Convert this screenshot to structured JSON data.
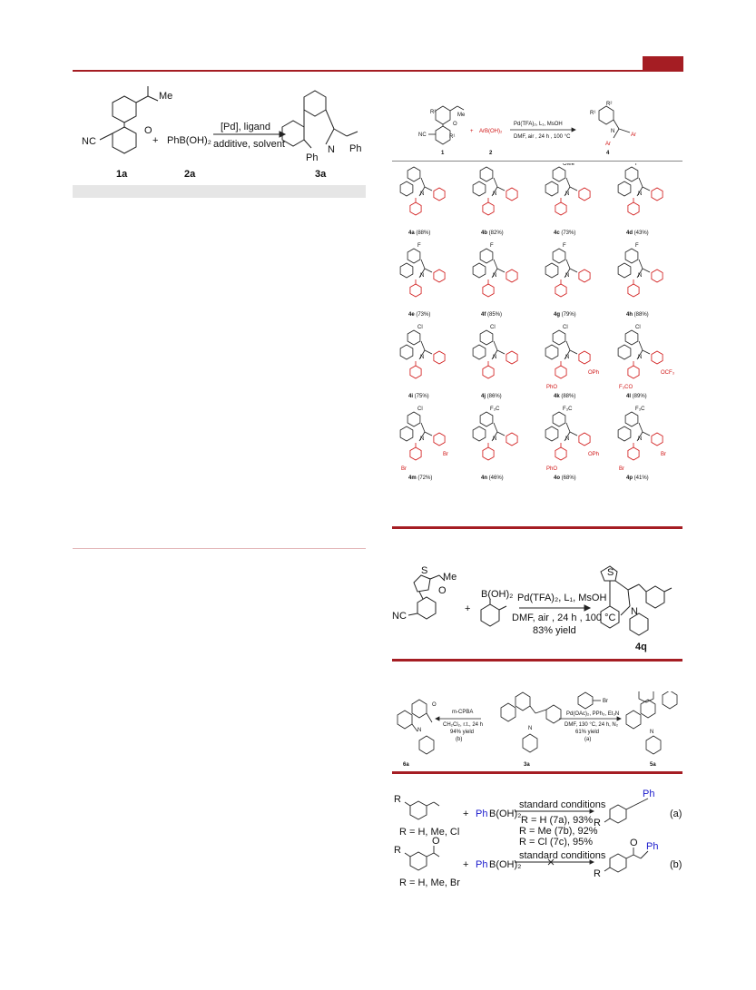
{
  "header": {
    "accent_color": "#a51d23"
  },
  "scheme1": {
    "reactant1": "1a",
    "reactant2": "2a",
    "product": "3a",
    "reagent_formula": "PhB(OH)₂",
    "plus": "+",
    "conditions_top": "[Pd], ligand",
    "conditions_bottom": "additive, solvent",
    "atoms": {
      "me": "Me",
      "o": "O",
      "nc": "NC",
      "n": "N",
      "ph_bottom": "Ph",
      "ph_side": "Ph"
    },
    "table_header_color": "#e6e6e6"
  },
  "scheme2": {
    "header": {
      "reagent": "ArB(OH)₂",
      "plus": "+",
      "conditions_top": "Pd(TFA)₂, L₁, MsOH",
      "conditions_bottom": "DMF, air , 24 h , 100 °C",
      "num1": "1",
      "num2": "2",
      "num4": "4",
      "atoms": {
        "nc": "NC",
        "me": "Me",
        "o": "O",
        "r1": "R¹",
        "r2": "R²",
        "r1b": "R¹",
        "r2b": "R²",
        "n": "N",
        "ar1": "Ar",
        "ar2": "Ar"
      }
    },
    "products": [
      {
        "id": "4a",
        "yield": "(88%)"
      },
      {
        "id": "4b",
        "yield": "(82%)"
      },
      {
        "id": "4c",
        "yield": "(73%)"
      },
      {
        "id": "4d",
        "yield": "(43%)"
      },
      {
        "id": "4e",
        "yield": "(73%)"
      },
      {
        "id": "4f",
        "yield": "(85%)"
      },
      {
        "id": "4g",
        "yield": "(79%)"
      },
      {
        "id": "4h",
        "yield": "(88%)"
      },
      {
        "id": "4i",
        "yield": "(75%)"
      },
      {
        "id": "4j",
        "yield": "(86%)"
      },
      {
        "id": "4k",
        "yield": "(88%)"
      },
      {
        "id": "4l",
        "yield": "(89%)"
      },
      {
        "id": "4m",
        "yield": "(72%)"
      },
      {
        "id": "4n",
        "yield": "(46%)"
      },
      {
        "id": "4o",
        "yield": "(68%)"
      },
      {
        "id": "4p",
        "yield": "(41%)"
      }
    ],
    "substituents": {
      "4c": "OMe",
      "4d": "F",
      "4e": "F",
      "4f": "F",
      "4g": "F",
      "4h": "F",
      "4i": "Cl",
      "4j": "Cl",
      "4k": "Cl",
      "4k_ar": "OPh",
      "4k_ar2": "PhO",
      "4l": "Cl",
      "4l_ar": "OCF₃",
      "4l_ar2": "F₃CO",
      "4m": "Cl",
      "4m_ar": "Br",
      "4m_ar2": "Br",
      "4n": "F₃C",
      "4o": "F₃C",
      "4o_ar": "OPh",
      "4o_ar2": "PhO",
      "4p": "F₃C",
      "4p_ar": "Br",
      "4p_ar2": "Br"
    },
    "n_label": "N"
  },
  "scheme3": {
    "plus": "+",
    "boronic": "B(OH)₂",
    "conditions_top": "Pd(TFA)₂, L₁, MsOH",
    "conditions_mid": "DMF, air , 24 h , 100 °C",
    "conditions_bottom": "83% yield",
    "product": "4q",
    "atoms": {
      "s": "S",
      "s2": "S",
      "me": "Me",
      "o": "O",
      "nc": "NC",
      "n": "N"
    }
  },
  "scheme4": {
    "left_conditions": [
      "m-CPBA",
      "CH₂Cl₂, r.t., 24 h",
      "94% yield",
      "(b)"
    ],
    "right_conditions": [
      "Pd(OAc)₂, PPh₃, Et₃N",
      "DMF, 130 °C, 24 h, N₂",
      "61% yield",
      "(a)"
    ],
    "bromide": "Br",
    "labels": {
      "left": "6a",
      "mid": "3a",
      "right": "5a"
    },
    "atoms": {
      "o": "O",
      "n1": "N",
      "n2": "N",
      "n3": "N"
    }
  },
  "scheme5": {
    "row_a": {
      "r": "R",
      "plus": "+",
      "reagent_ph": "Ph",
      "reagent_rest": "B(OH)₂",
      "conditions": "standard conditions",
      "results": [
        "R = H (7a), 93%",
        "R = Me (7b), 92%",
        "R = Cl (7c), 95%"
      ],
      "product_r": "R",
      "product_ph": "Ph",
      "tag": "(a)",
      "scope": "R = H, Me, Cl"
    },
    "row_b": {
      "r": "R",
      "plus": "+",
      "reagent_ph": "Ph",
      "reagent_rest": "B(OH)₂",
      "conditions": "standard conditions",
      "product_r": "R",
      "product_ph": "Ph",
      "product_o": "O",
      "tag": "(b)",
      "scope": "R = H, Me, Br",
      "reactant_o": "O"
    },
    "ph_color": "#1a1acc"
  }
}
